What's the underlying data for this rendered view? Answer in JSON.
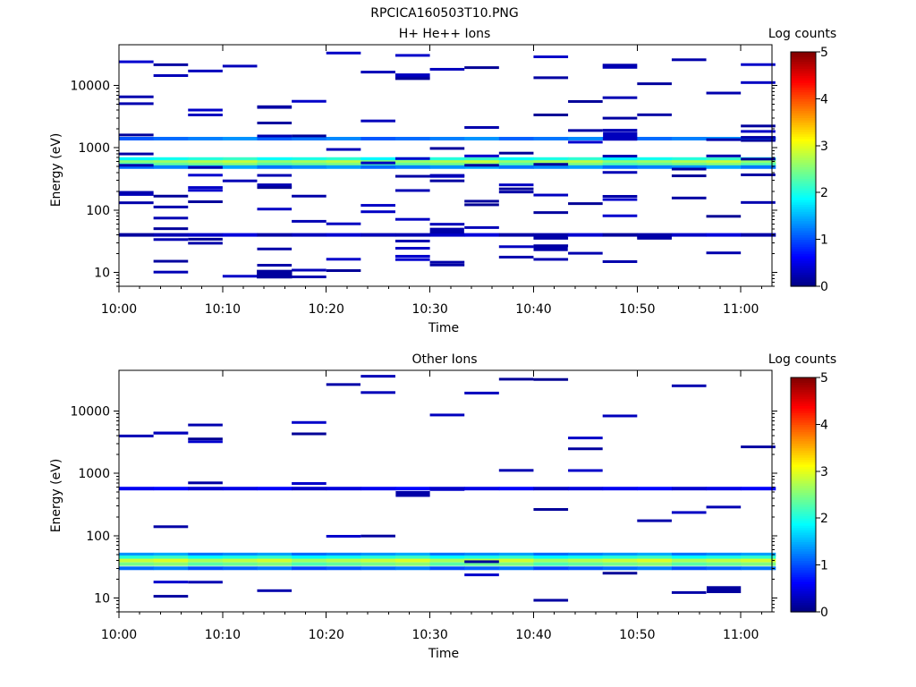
{
  "page_title": "RPCICA160503T10.PNG",
  "chart_data": [
    {
      "type": "heatmap",
      "title": "H+ He++ Ions",
      "xlabel": "Time",
      "ylabel": "Energy (eV)",
      "x_ticks": [
        "10:00",
        "10:10",
        "10:20",
        "10:30",
        "10:40",
        "10:50",
        "11:00"
      ],
      "y_ticks": [
        "10",
        "100",
        "1000",
        "10000"
      ],
      "y_scale": "log",
      "ylim": [
        6,
        45000
      ],
      "xlim_minutes": [
        0,
        63
      ],
      "colorbar": {
        "label": "Log counts",
        "ticks": [
          "0",
          "1",
          "2",
          "3",
          "4",
          "5"
        ],
        "range": [
          0,
          5
        ],
        "colormap": "jet"
      },
      "bands": [
        {
          "energy": 660,
          "level": 2.0
        },
        {
          "energy": 590,
          "level": 2.7
        },
        {
          "energy": 540,
          "level": 2.4
        },
        {
          "energy": 490,
          "level": 1.3
        },
        {
          "energy": 1400,
          "level": 1.2
        },
        {
          "energy": 40,
          "level": 0.3
        }
      ],
      "blocks": [
        {
          "t": [
            13.3,
            16.7
          ],
          "e": [
            8,
            11
          ],
          "level": 0.15
        },
        {
          "t": [
            40.0,
            43.3
          ],
          "e": [
            22,
            26
          ],
          "level": 0.2
        },
        {
          "t": [
            40.0,
            43.3
          ],
          "e": [
            34,
            42
          ],
          "level": 0.2
        },
        {
          "t": [
            30.0,
            33.3
          ],
          "e": [
            42,
            52
          ],
          "level": 0.2
        },
        {
          "t": [
            50.0,
            53.3
          ],
          "e": [
            34,
            42
          ],
          "level": 0.2
        },
        {
          "t": [
            46.7,
            50.0
          ],
          "e": [
            1300,
            1800
          ],
          "level": 0.3
        }
      ],
      "noise_seed": 7,
      "noise_count": 140
    },
    {
      "type": "heatmap",
      "title": "Other Ions",
      "xlabel": "Time",
      "ylabel": "Energy (eV)",
      "x_ticks": [
        "10:00",
        "10:10",
        "10:20",
        "10:30",
        "10:40",
        "10:50",
        "11:00"
      ],
      "y_ticks": [
        "10",
        "100",
        "1000",
        "10000"
      ],
      "y_scale": "log",
      "ylim": [
        6,
        45000
      ],
      "xlim_minutes": [
        0,
        63
      ],
      "colorbar": {
        "label": "Log counts",
        "ticks": [
          "0",
          "1",
          "2",
          "3",
          "4",
          "5"
        ],
        "range": [
          0,
          5
        ],
        "colormap": "jet"
      },
      "bands": [
        {
          "energy": 50,
          "level": 1.3
        },
        {
          "energy": 45,
          "level": 2.0
        },
        {
          "energy": 40,
          "level": 2.8
        },
        {
          "energy": 35,
          "level": 2.4
        },
        {
          "energy": 30,
          "level": 1.1
        },
        {
          "energy": 570,
          "level": 0.5
        }
      ],
      "blocks": [
        {
          "t": [
            56.7,
            60.0
          ],
          "e": [
            12,
            15.5
          ],
          "level": 0.15
        },
        {
          "t": [
            20.0,
            23.3
          ],
          "e": [
            26000,
            28000
          ],
          "level": 0.2
        },
        {
          "t": [
            26.7,
            30.0
          ],
          "e": [
            420,
            520
          ],
          "level": 0.2
        }
      ],
      "noise_seed": 13,
      "noise_count": 40
    }
  ]
}
